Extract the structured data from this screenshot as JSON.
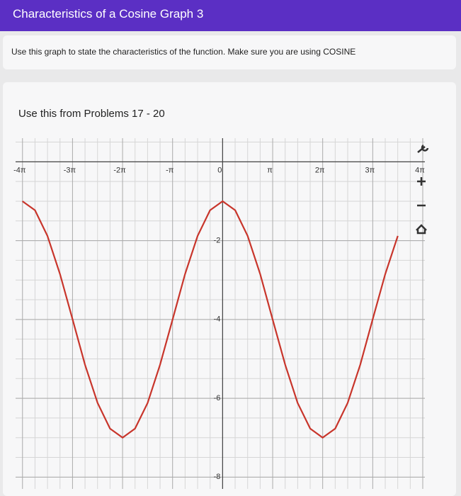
{
  "header": {
    "title": "Characteristics of a Cosine Graph 3"
  },
  "instructions": "Use this graph to state the characteristics of the function. Make sure you are using COSINE",
  "card_title": "Use this from Problems 17 - 20",
  "chart_data": {
    "type": "line",
    "x": [
      -12.57,
      -11.78,
      -11.0,
      -10.21,
      -9.42,
      -8.64,
      -7.85,
      -7.07,
      -6.28,
      -5.5,
      -4.71,
      -3.93,
      -3.14,
      -2.36,
      -1.57,
      -0.79,
      0,
      0.79,
      1.57,
      2.36,
      3.14,
      3.93,
      4.71,
      5.5,
      6.28,
      7.07,
      7.85,
      8.64,
      9.42,
      10.21,
      11.0
    ],
    "series": [
      {
        "color": "#c8352b",
        "values": [
          -1,
          -1.23,
          -1.88,
          -2.85,
          -4,
          -5.15,
          -6.12,
          -6.77,
          -7,
          -6.77,
          -6.12,
          -5.15,
          -4,
          -2.85,
          -1.88,
          -1.23,
          -1,
          -1.23,
          -1.88,
          -2.85,
          -4,
          -5.15,
          -6.12,
          -6.77,
          -7,
          -6.77,
          -6.12,
          -5.15,
          -4,
          -2.85,
          -1.88
        ]
      }
    ],
    "xlim": [
      -13,
      12.7
    ],
    "ylim": [
      -8.3,
      0.6
    ],
    "xticks": [
      {
        "value": -12.566,
        "label": "-4π"
      },
      {
        "value": -9.425,
        "label": "-3π"
      },
      {
        "value": -6.283,
        "label": "-2π"
      },
      {
        "value": -3.142,
        "label": "-π"
      },
      0,
      {
        "value": 3.142,
        "label": "π"
      },
      {
        "value": 6.283,
        "label": "2π"
      },
      {
        "value": 9.425,
        "label": "3π"
      },
      {
        "value": 12.566,
        "label": "4π"
      }
    ],
    "yticks": [
      -2,
      -4,
      -6,
      -8
    ],
    "grid": true
  }
}
